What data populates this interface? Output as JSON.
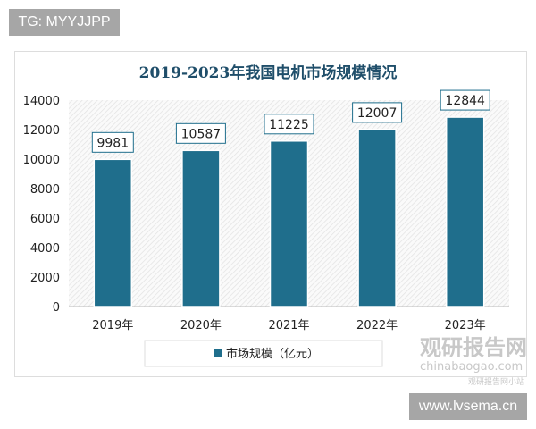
{
  "top_tag": "TG: MYYJJPP",
  "bottom_tag": "www.lvsema.cn",
  "watermark": {
    "name": "观研报告网",
    "domain": "chinabaogao.com",
    "sub": "观研报告网小站"
  },
  "chart_data": {
    "type": "bar",
    "title": "2019-2023年我国电机市场规模情况",
    "categories": [
      "2019年",
      "2020年",
      "2021年",
      "2022年",
      "2023年"
    ],
    "series": [
      {
        "name": "市场规模（亿元）",
        "values": [
          9981,
          10587,
          11225,
          12007,
          12844
        ]
      }
    ],
    "ylim": [
      0,
      14000
    ],
    "yticks": [
      0,
      2000,
      4000,
      6000,
      8000,
      10000,
      12000,
      14000
    ],
    "legend": "bottom",
    "bar_color": "#1f6e8c",
    "grid": false
  }
}
